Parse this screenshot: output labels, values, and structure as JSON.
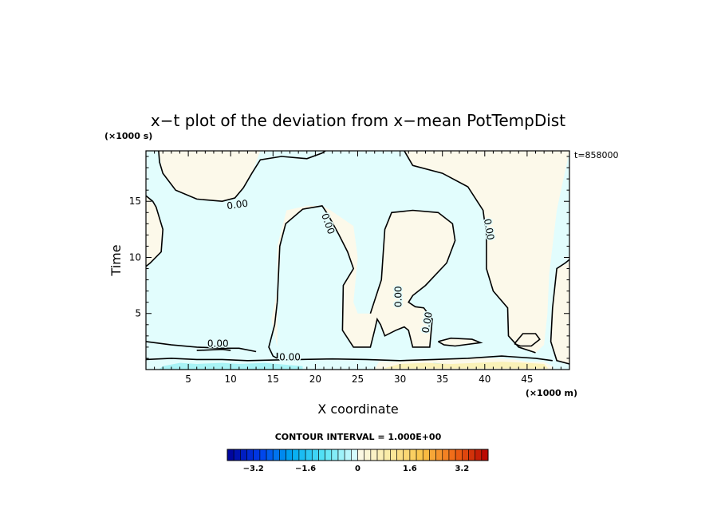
{
  "chart_data": {
    "type": "heatmap",
    "title": "x−t plot of the deviation from x−mean PotTempDist",
    "xlabel": "X coordinate",
    "ylabel": "Time",
    "x_unit": "(×1000 m)",
    "y_unit": "(×1000 s)",
    "annotation": "t=858000",
    "xlim": [
      0,
      50
    ],
    "ylim": [
      0,
      19.5
    ],
    "x_ticks": [
      5,
      10,
      15,
      20,
      25,
      30,
      35,
      40,
      45
    ],
    "y_ticks": [
      5,
      10,
      15
    ],
    "contour_label": "0.00",
    "contour_interval_text": "CONTOUR INTERVAL = 1.000E+00",
    "colorbar": {
      "min": -4.0,
      "max": 4.0,
      "step": 0.2,
      "labels": [
        "−3.2",
        "−1.6",
        "0",
        "1.6",
        "3.2"
      ],
      "label_values": [
        -3.2,
        -1.6,
        0,
        1.6,
        3.2
      ]
    },
    "colors": {
      "negative_small": "#e2fdfd",
      "positive_small": "#fcf9ea",
      "negative_mid": "#a8f3f6",
      "positive_mid": "#fbf2b8"
    },
    "regions": {
      "positive": [
        [
          [
            1.5,
            19.5
          ],
          [
            2,
            17.5
          ],
          [
            3.5,
            16
          ],
          [
            6,
            15.2
          ],
          [
            9,
            15
          ],
          [
            10.5,
            15.3
          ],
          [
            11.5,
            16.2
          ],
          [
            12.5,
            17.5
          ],
          [
            13.5,
            19.5
          ]
        ],
        [
          [
            0,
            15.5
          ],
          [
            1.2,
            14.5
          ],
          [
            2,
            12.5
          ],
          [
            1.8,
            10.5
          ],
          [
            0.5,
            9.5
          ],
          [
            0,
            9.2
          ]
        ],
        [
          [
            15.5,
            6
          ],
          [
            15.8,
            11
          ],
          [
            16.5,
            13
          ],
          [
            18.5,
            14.3
          ],
          [
            20.8,
            14.6
          ],
          [
            21.5,
            13.8
          ],
          [
            22.8,
            12
          ],
          [
            23.8,
            10.5
          ],
          [
            24.5,
            9
          ],
          [
            23.3,
            7.5
          ],
          [
            23.2,
            3.5
          ],
          [
            24.5,
            2
          ],
          [
            26.5,
            2
          ],
          [
            27,
            3.5
          ],
          [
            27.3,
            4.5
          ],
          [
            27.7,
            4
          ],
          [
            28.2,
            3
          ],
          [
            29.5,
            3.5
          ],
          [
            30.5,
            3.8
          ],
          [
            31,
            3.5
          ],
          [
            31.5,
            2
          ],
          [
            33.5,
            2
          ],
          [
            33.8,
            4.5
          ],
          [
            32.8,
            5.5
          ],
          [
            31.8,
            5.6
          ],
          [
            31,
            6
          ],
          [
            31.5,
            6.6
          ],
          [
            33,
            7.5
          ],
          [
            35.5,
            9.5
          ],
          [
            36.5,
            11.5
          ],
          [
            36.2,
            13
          ],
          [
            34.5,
            14
          ],
          [
            31.5,
            14.2
          ],
          [
            29,
            14
          ],
          [
            28.2,
            12.5
          ],
          [
            27.8,
            8
          ],
          [
            26.5,
            5
          ],
          [
            25,
            5
          ],
          [
            24.5,
            6
          ],
          [
            25,
            10
          ],
          [
            24.5,
            12.8
          ],
          [
            21.8,
            14.2
          ],
          [
            20.8,
            14.6
          ],
          [
            19,
            14.6
          ],
          [
            16.6,
            14.2
          ],
          [
            15.5,
            11
          ],
          [
            15.5,
            7
          ],
          [
            14.8,
            4.5
          ],
          [
            15.5,
            2
          ],
          [
            15.5,
            1
          ]
        ],
        [
          [
            30.5,
            19.5
          ],
          [
            31.5,
            18.2
          ],
          [
            35,
            17.5
          ],
          [
            38,
            16.3
          ],
          [
            39.8,
            14.2
          ],
          [
            40.2,
            12
          ],
          [
            40.2,
            9
          ],
          [
            41,
            7
          ],
          [
            42.7,
            5.5
          ],
          [
            42.8,
            3
          ],
          [
            44,
            2
          ],
          [
            46,
            1.5
          ],
          [
            47,
            2.2
          ],
          [
            47.4,
            5
          ],
          [
            47.6,
            8.5
          ],
          [
            48.5,
            14.2
          ],
          [
            49,
            16
          ],
          [
            50,
            19.5
          ]
        ],
        [
          [
            48.5,
            9
          ],
          [
            49.8,
            9.5
          ],
          [
            50,
            9.8
          ],
          [
            50,
            0.5
          ],
          [
            48.5,
            0.8
          ],
          [
            47.8,
            2.5
          ],
          [
            48,
            5.5
          ]
        ],
        [
          [
            43.5,
            2.3
          ],
          [
            44.5,
            3.2
          ],
          [
            46,
            3.2
          ],
          [
            46.5,
            2.7
          ],
          [
            45.5,
            2.1
          ],
          [
            44.2,
            2.1
          ]
        ],
        [
          [
            34.5,
            2.5
          ],
          [
            36,
            2.8
          ],
          [
            38.5,
            2.7
          ],
          [
            39.5,
            2.4
          ],
          [
            36.5,
            2.1
          ],
          [
            35.2,
            2.2
          ]
        ],
        [
          [
            27,
            0
          ],
          [
            27.5,
            0.7
          ],
          [
            30,
            0.7
          ],
          [
            33,
            0.9
          ],
          [
            37,
            1
          ],
          [
            41,
            1
          ],
          [
            43.5,
            0.9
          ],
          [
            45,
            0.7
          ],
          [
            47,
            0.7
          ],
          [
            48,
            0.3
          ],
          [
            48,
            0
          ]
        ]
      ],
      "negative_mid": [
        [
          [
            1.5,
            0
          ],
          [
            2,
            0.3
          ],
          [
            4,
            0.6
          ],
          [
            6,
            0.5
          ],
          [
            9,
            0.6
          ],
          [
            11,
            0.5
          ],
          [
            14,
            0.6
          ],
          [
            17,
            0.4
          ],
          [
            18.5,
            0.3
          ],
          [
            18.5,
            0
          ]
        ],
        [
          [
            31,
            0.3
          ],
          [
            33,
            0.4
          ],
          [
            34,
            0.6
          ],
          [
            35.5,
            0.5
          ],
          [
            36,
            0.3
          ],
          [
            34,
            0.2
          ]
        ]
      ],
      "positive_mid": [
        [
          [
            28,
            0.1
          ],
          [
            30,
            0.5
          ],
          [
            33,
            0.6
          ],
          [
            36,
            0.5
          ],
          [
            39,
            0.6
          ],
          [
            42,
            0.7
          ],
          [
            45,
            0.6
          ],
          [
            47,
            0.5
          ],
          [
            47.5,
            0.1
          ]
        ]
      ]
    },
    "contours": [
      [
        [
          1.5,
          19.5
        ],
        [
          1.6,
          18.5
        ],
        [
          2.0,
          17.5
        ],
        [
          3.5,
          16.0
        ],
        [
          6.0,
          15.2
        ],
        [
          9.0,
          15.0
        ],
        [
          10.5,
          15.3
        ],
        [
          11.5,
          16.2
        ],
        [
          12.5,
          17.5
        ],
        [
          13.5,
          18.7
        ],
        [
          16.0,
          19.0
        ],
        [
          19.0,
          18.8
        ],
        [
          20.8,
          19.3
        ],
        [
          21.2,
          19.5
        ]
      ],
      [
        [
          0.0,
          15.5
        ],
        [
          0.8,
          15.0
        ],
        [
          1.2,
          14.5
        ],
        [
          2.0,
          12.5
        ],
        [
          1.8,
          10.5
        ],
        [
          0.5,
          9.5
        ],
        [
          0.0,
          9.2
        ]
      ],
      [
        [
          15.5,
          1.5
        ],
        [
          15.5,
          1.0
        ]
      ],
      [
        [
          15.5,
          6.0
        ],
        [
          15.8,
          11.0
        ],
        [
          16.5,
          13.0
        ],
        [
          18.5,
          14.3
        ],
        [
          20.8,
          14.6
        ],
        [
          21.5,
          13.8
        ],
        [
          22.8,
          12.0
        ],
        [
          23.8,
          10.5
        ],
        [
          24.5,
          9.0
        ],
        [
          23.3,
          7.5
        ],
        [
          23.2,
          3.5
        ],
        [
          24.5,
          2.0
        ],
        [
          26.5,
          2.0
        ],
        [
          27.0,
          3.5
        ],
        [
          27.3,
          4.5
        ],
        [
          27.7,
          4.0
        ],
        [
          28.2,
          3.0
        ],
        [
          29.5,
          3.5
        ],
        [
          30.5,
          3.8
        ],
        [
          31.0,
          3.5
        ],
        [
          31.5,
          2.0
        ],
        [
          33.5,
          2.0
        ],
        [
          33.8,
          4.5
        ],
        [
          32.8,
          5.5
        ],
        [
          31.8,
          5.6
        ],
        [
          31.0,
          6.0
        ],
        [
          31.5,
          6.6
        ],
        [
          33.0,
          7.5
        ],
        [
          35.5,
          9.5
        ],
        [
          36.5,
          11.5
        ],
        [
          36.2,
          13.0
        ],
        [
          34.5,
          14.0
        ],
        [
          31.5,
          14.2
        ],
        [
          29.0,
          14.0
        ],
        [
          28.2,
          12.5
        ],
        [
          27.8,
          8.0
        ],
        [
          26.5,
          5.0
        ]
      ],
      [
        [
          15.5,
          6.0
        ],
        [
          15.2,
          4.0
        ],
        [
          14.5,
          2.0
        ],
        [
          15.0,
          1.2
        ],
        [
          15.5,
          1.0
        ]
      ],
      [
        [
          30.5,
          19.5
        ],
        [
          31.5,
          18.2
        ],
        [
          35.0,
          17.5
        ],
        [
          38.0,
          16.3
        ],
        [
          39.8,
          14.2
        ],
        [
          40.2,
          12.0
        ],
        [
          40.2,
          9.0
        ],
        [
          41.0,
          7.0
        ],
        [
          42.7,
          5.5
        ],
        [
          42.8,
          3.0
        ],
        [
          44.0,
          2.0
        ],
        [
          46.0,
          1.5
        ]
      ],
      [
        [
          50.0,
          9.8
        ],
        [
          49.5,
          9.5
        ],
        [
          48.5,
          9.0
        ],
        [
          48.0,
          5.5
        ],
        [
          47.8,
          2.5
        ],
        [
          48.5,
          0.8
        ],
        [
          50.0,
          0.5
        ]
      ],
      [
        [
          43.5,
          2.3
        ],
        [
          44.5,
          3.2
        ],
        [
          46.0,
          3.2
        ],
        [
          46.5,
          2.7
        ],
        [
          45.5,
          2.1
        ],
        [
          44.2,
          2.1
        ],
        [
          43.5,
          2.3
        ]
      ],
      [
        [
          0.0,
          2.5
        ],
        [
          3.0,
          2.2
        ],
        [
          6.0,
          2.0
        ],
        [
          9.0,
          1.9
        ],
        [
          11.0,
          1.9
        ],
        [
          13.0,
          1.6
        ]
      ],
      [
        [
          6.0,
          1.7
        ],
        [
          9.0,
          1.8
        ],
        [
          10.0,
          1.7
        ]
      ],
      [
        [
          0.0,
          0.9
        ],
        [
          3.0,
          1.0
        ],
        [
          6.0,
          0.9
        ],
        [
          9.0,
          0.9
        ],
        [
          12.0,
          0.8
        ],
        [
          15.0,
          0.85
        ],
        [
          18.0,
          0.9
        ],
        [
          22.0,
          0.95
        ],
        [
          26.0,
          0.9
        ],
        [
          30.0,
          0.8
        ],
        [
          34.0,
          0.9
        ],
        [
          38.0,
          1.0
        ],
        [
          42.0,
          1.2
        ],
        [
          46.0,
          1.0
        ],
        [
          48.0,
          0.8
        ]
      ],
      [
        [
          34.5,
          2.5
        ],
        [
          36.0,
          2.8
        ],
        [
          38.5,
          2.7
        ],
        [
          39.5,
          2.4
        ],
        [
          36.5,
          2.1
        ],
        [
          35.2,
          2.2
        ],
        [
          34.5,
          2.5
        ]
      ]
    ],
    "contour_labels": [
      {
        "x": 10.8,
        "y": 14.7,
        "rot": -8
      },
      {
        "x": 21.5,
        "y": 13.0,
        "rot": 70
      },
      {
        "x": 40.5,
        "y": 12.5,
        "rot": 80
      },
      {
        "x": 29.8,
        "y": 6.5,
        "rot": -90
      },
      {
        "x": 33.2,
        "y": 4.2,
        "rot": -80
      },
      {
        "x": 8.5,
        "y": 2.3,
        "rot": 0
      },
      {
        "x": 17.0,
        "y": 1.1,
        "rot": 0
      }
    ]
  }
}
